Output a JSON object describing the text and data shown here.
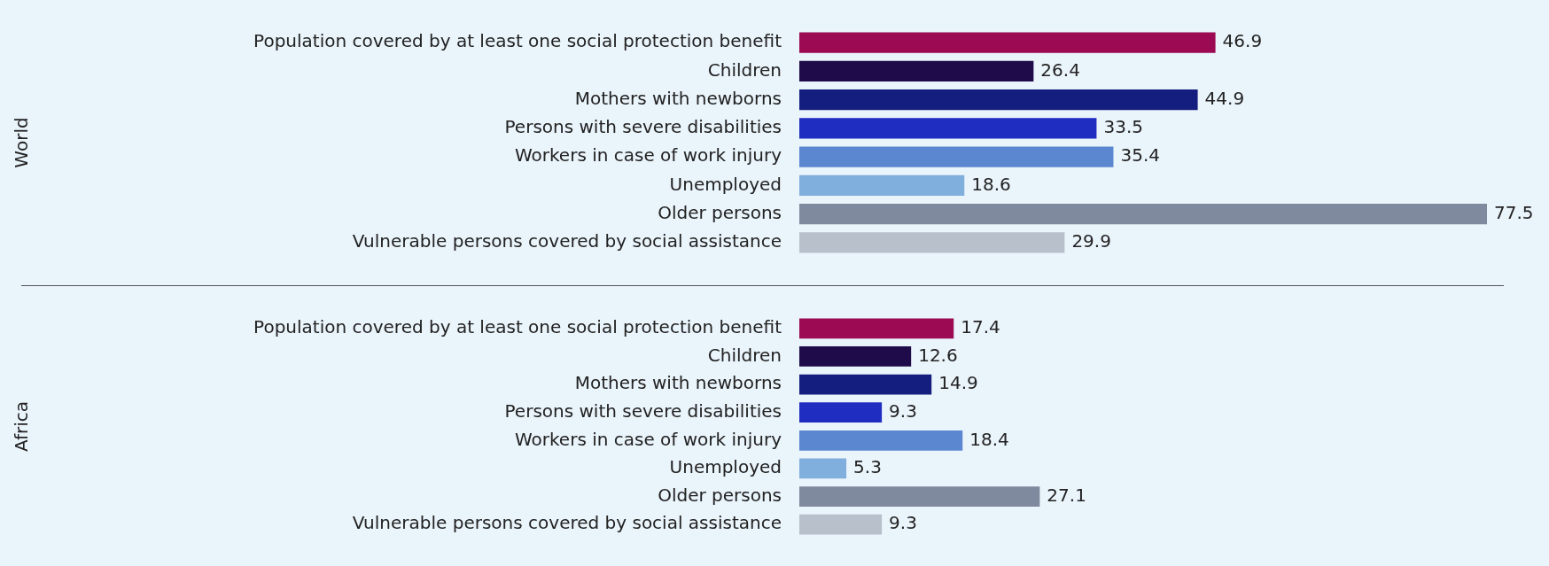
{
  "chart_data": [
    {
      "type": "bar",
      "orientation": "horizontal",
      "ylabel": "World",
      "categories": [
        "Population covered by at least one social protection benefit",
        "Children",
        "Mothers with newborns",
        "Persons with severe disabilities",
        "Workers in case of work injury",
        "Unemployed",
        "Older persons",
        "Vulnerable persons covered by social assistance"
      ],
      "values": [
        46.9,
        26.4,
        44.9,
        33.5,
        35.4,
        18.6,
        77.5,
        29.9
      ],
      "colors": [
        "#9b0a52",
        "#1f0a4a",
        "#141e7e",
        "#1f2ec0",
        "#5a87d0",
        "#80aedd",
        "#808a9e",
        "#b8c0cc"
      ],
      "data_labels": true,
      "tick_labels": "y"
    },
    {
      "type": "bar",
      "orientation": "horizontal",
      "ylabel": "Africa",
      "categories": [
        "Population covered by at least one social protection benefit",
        "Children",
        "Mothers with newborns",
        "Persons with severe disabilities",
        "Workers in case of work injury",
        "Unemployed",
        "Older persons",
        "Vulnerable persons covered by social assistance"
      ],
      "values": [
        17.4,
        12.6,
        14.9,
        9.3,
        18.4,
        5.3,
        27.1,
        9.3
      ],
      "colors": [
        "#9b0a52",
        "#1f0a4a",
        "#141e7e",
        "#1f2ec0",
        "#5a87d0",
        "#80aedd",
        "#808a9e",
        "#b8c0cc"
      ],
      "data_labels": true,
      "tick_labels": "y"
    }
  ]
}
